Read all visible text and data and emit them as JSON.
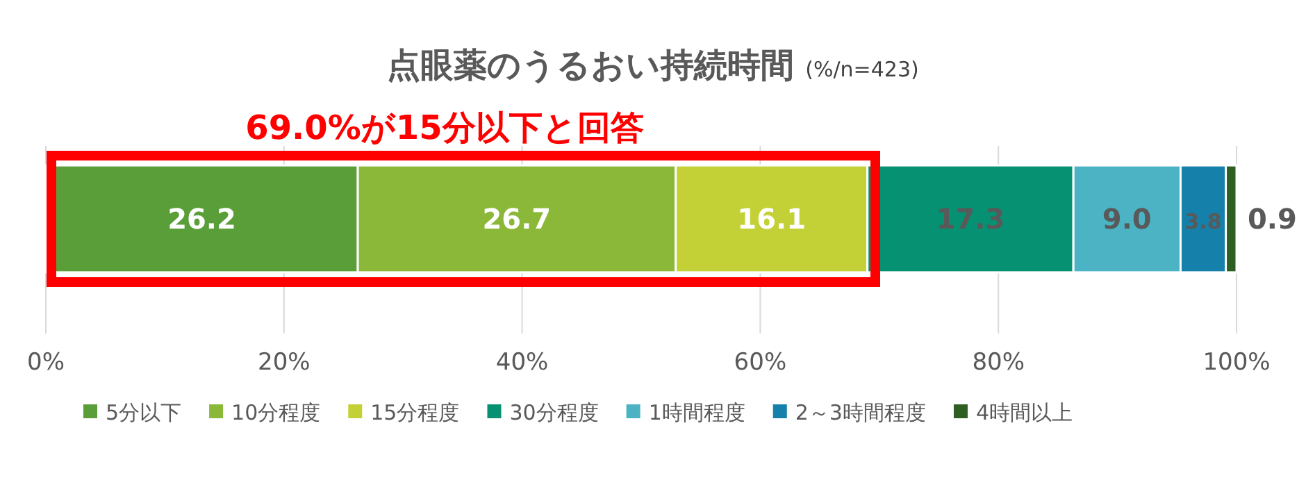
{
  "chart_data": {
    "type": "bar",
    "orientation": "horizontal",
    "stacked": true,
    "title": "点眼薬のうるおい持続時間",
    "subtitle": "(%/n=423)",
    "annotations": [
      "69.0%が15分以下と回答"
    ],
    "categories": [
      null
    ],
    "series": [
      {
        "name": "5分以下",
        "color": "#5a9e3a",
        "values": [
          26.2
        ]
      },
      {
        "name": "10分程度",
        "color": "#8cb83a",
        "values": [
          26.7
        ]
      },
      {
        "name": "15分程度",
        "color": "#c3d137",
        "values": [
          16.1
        ]
      },
      {
        "name": "30分程度",
        "color": "#079173",
        "values": [
          17.3
        ]
      },
      {
        "name": "1時間程度",
        "color": "#4bb3c4",
        "values": [
          9.0
        ]
      },
      {
        "name": "2～3時間程度",
        "color": "#1581ab",
        "values": [
          3.8
        ]
      },
      {
        "name": "4時間以上",
        "color": "#2e5e22",
        "values": [
          0.9
        ]
      }
    ],
    "value_labels": [
      "26.2",
      "26.7",
      "16.1",
      "17.3",
      "9.0",
      "3.8",
      "0.9"
    ],
    "xlim": [
      0,
      100
    ],
    "xticks": [
      {
        "value": 0,
        "label": "0%"
      },
      {
        "value": 20,
        "label": "20%"
      },
      {
        "value": 40,
        "label": "40%"
      },
      {
        "value": 60,
        "label": "60%"
      },
      {
        "value": 80,
        "label": "80%"
      },
      {
        "value": 100,
        "label": "100%"
      }
    ],
    "grid": "x",
    "legend": "bottom"
  }
}
